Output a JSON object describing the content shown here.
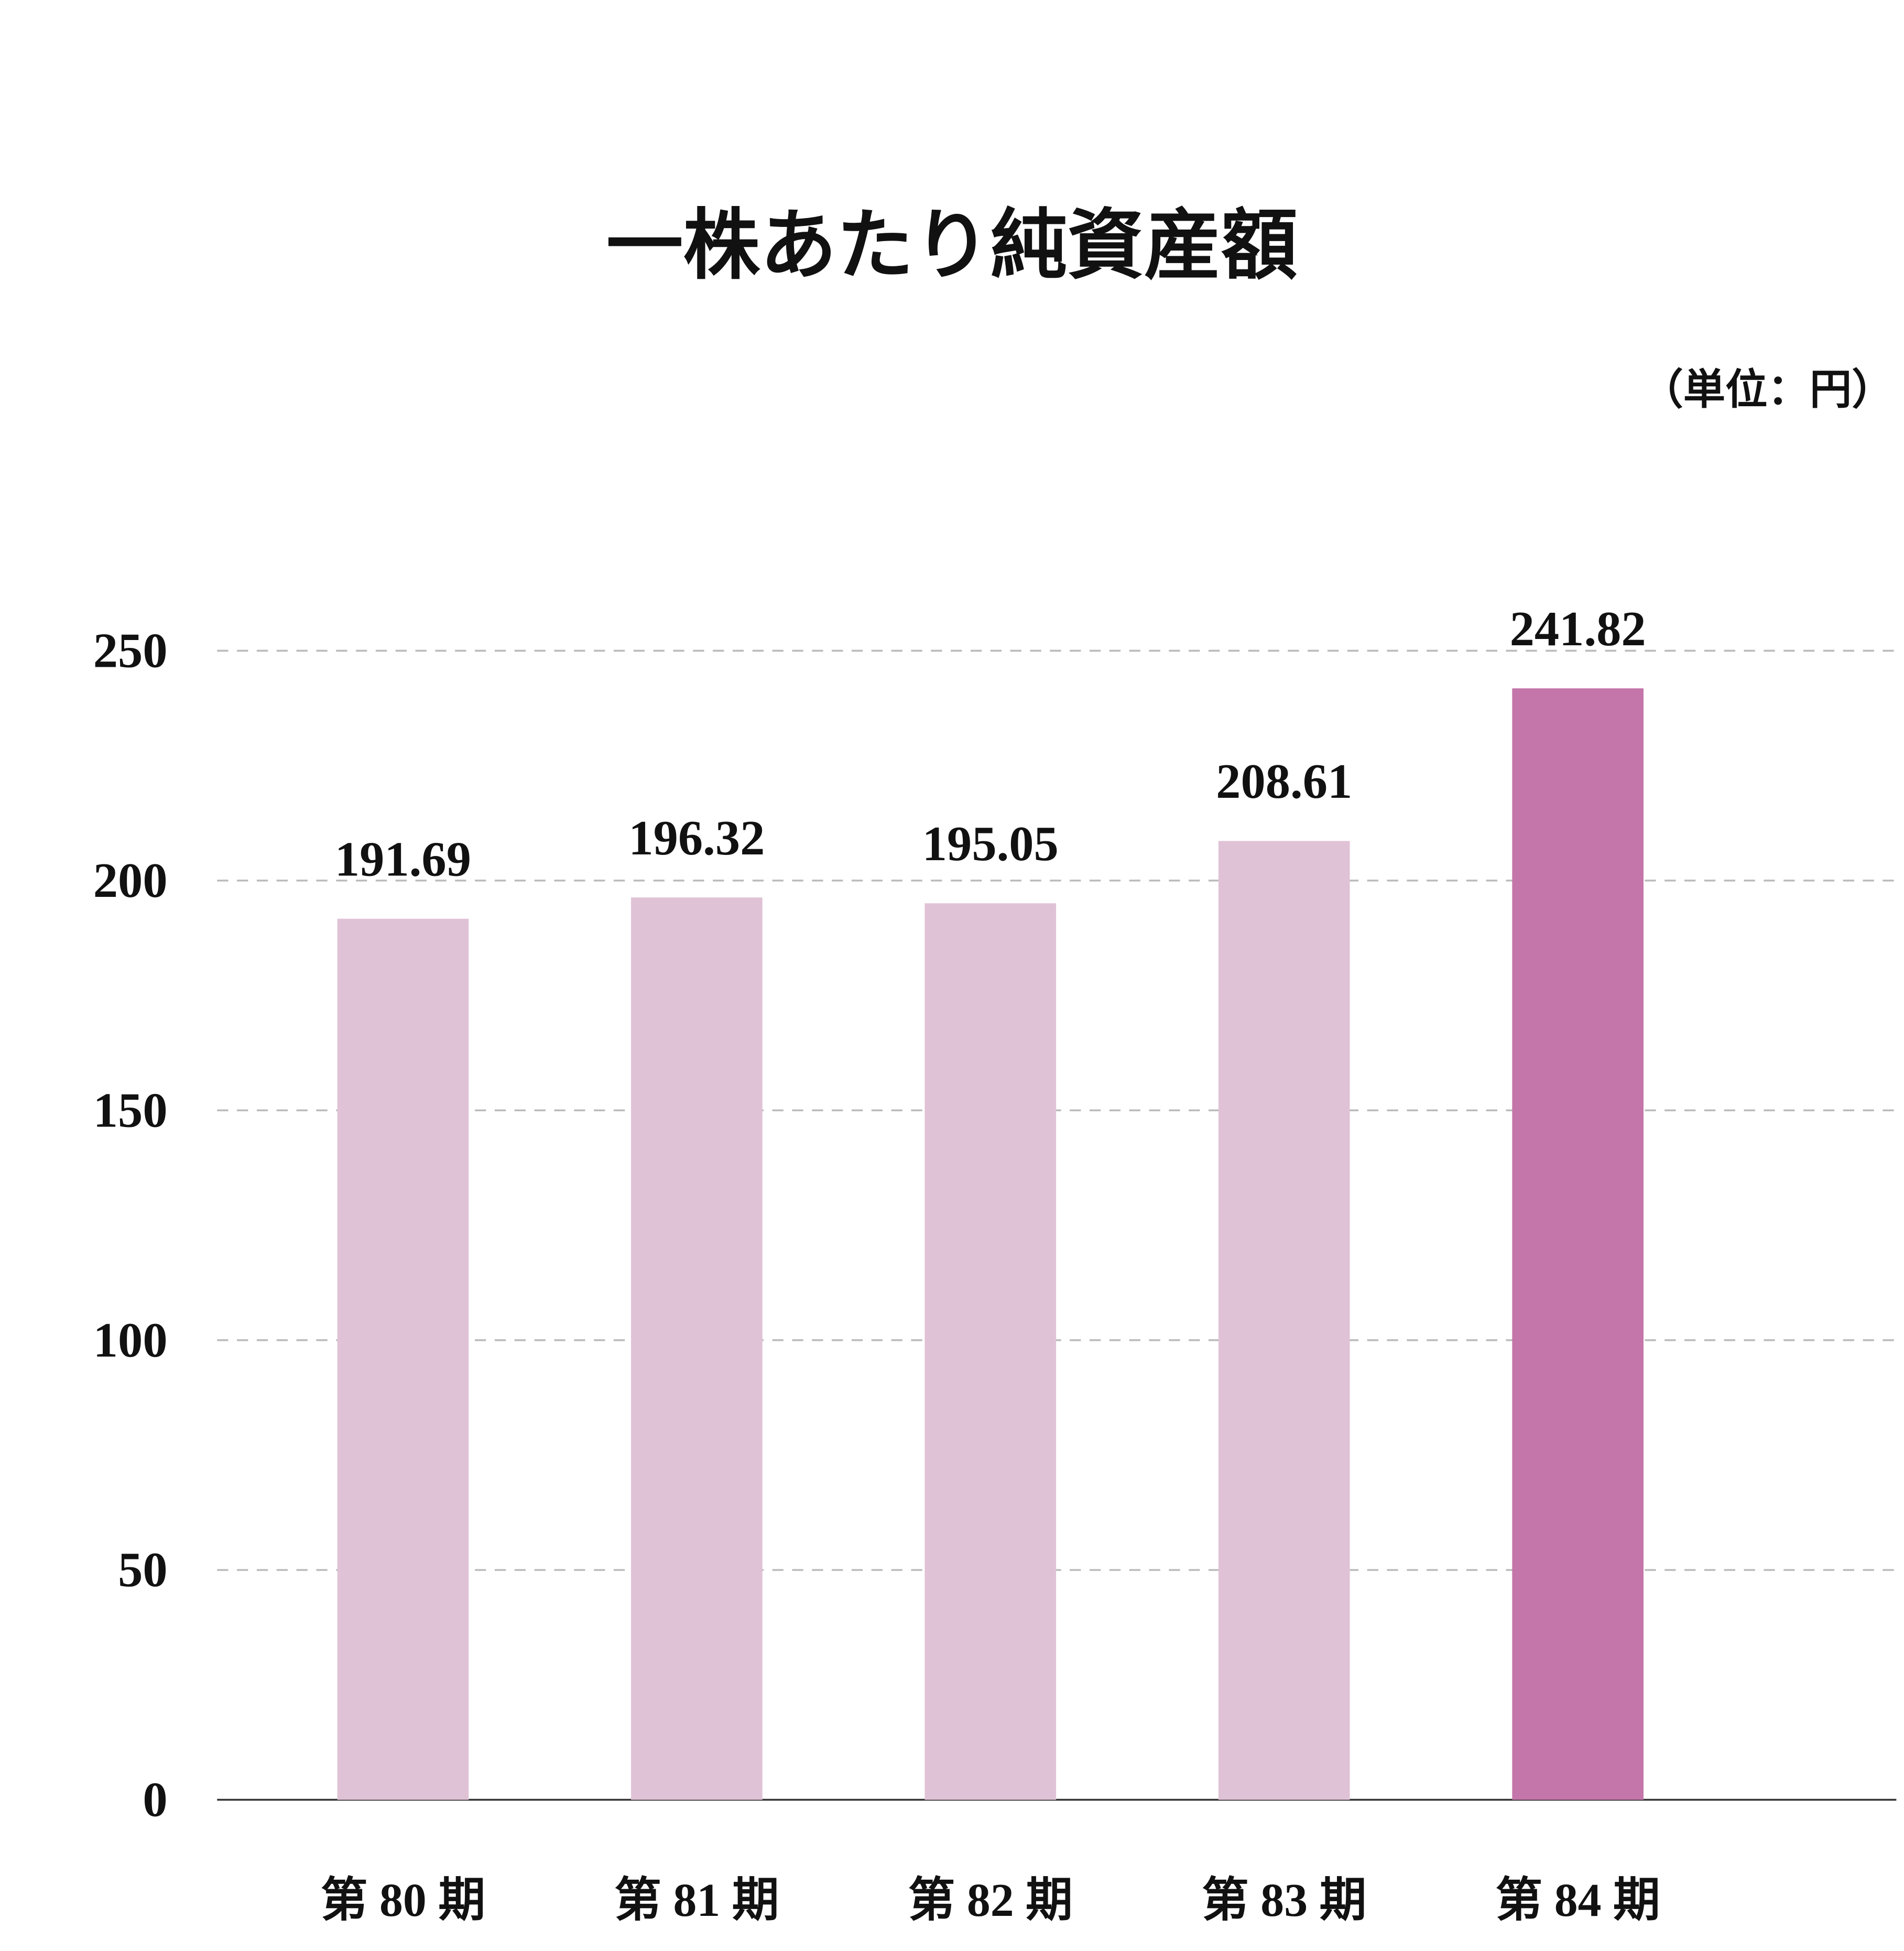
{
  "chart_data": {
    "type": "bar",
    "title": "一株あたり純資産額",
    "unit_label": "（単位：円）",
    "categories": [
      "第 80 期",
      "第 81 期",
      "第 82 期",
      "第 83 期",
      "第 84 期"
    ],
    "values": [
      191.69,
      196.32,
      195.05,
      208.61,
      241.82
    ],
    "colors": [
      "#e0c2d6",
      "#e0c2d6",
      "#e0c2d6",
      "#e0c2d6",
      "#c476aa"
    ],
    "ylim": [
      0,
      250
    ],
    "yticks": [
      0,
      50,
      100,
      150,
      200,
      250
    ],
    "grid": true
  }
}
